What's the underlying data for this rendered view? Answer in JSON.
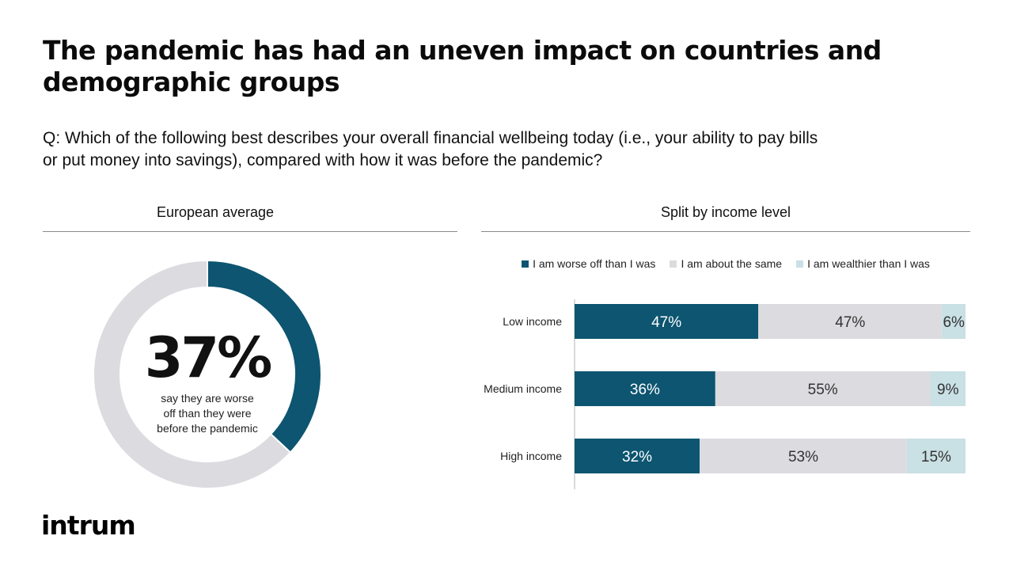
{
  "title_line1": "The pandemic has had an uneven impact on countries and",
  "title_line2": "demographic groups",
  "question_line1": "Q: Which of the following best describes your overall financial wellbeing today (i.e., your ability to pay bills",
  "question_line2": "or put money into savings), compared with how it was before the pandemic?",
  "left_panel_title": "European average",
  "right_panel_title": "Split by income level",
  "donut_big_label": "37%",
  "donut_caption": [
    "say they are worse",
    "off than they were",
    "before the pandemic"
  ],
  "logo_text": "intrum",
  "colors": {
    "worse": "#0d5570",
    "same": "#dcdbdf",
    "wealthier": "#c9e0e4",
    "donut_rest": "#dcdbdf"
  },
  "chart_data": [
    {
      "type": "pie",
      "title": "European average",
      "values": [
        37,
        63
      ],
      "labels": [
        "",
        ""
      ],
      "style": "donut"
    },
    {
      "type": "bar",
      "orientation": "horizontal",
      "stacked": true,
      "title": "Split by income level",
      "categories": [
        "Low income",
        "Medium income",
        "High income"
      ],
      "series": [
        {
          "name": "I am worse off than I was",
          "values": [
            47,
            36,
            32
          ],
          "labels": [
            "47%",
            "36%",
            "32%"
          ]
        },
        {
          "name": "I am about the same",
          "values": [
            47,
            55,
            53
          ],
          "labels": [
            "47%",
            "55%",
            "53%"
          ]
        },
        {
          "name": "I am wealthier than I was",
          "values": [
            6,
            9,
            15
          ],
          "labels": [
            "6%",
            "9%",
            "15%"
          ]
        }
      ],
      "xlim": [
        0,
        100
      ],
      "legend": "top"
    }
  ]
}
